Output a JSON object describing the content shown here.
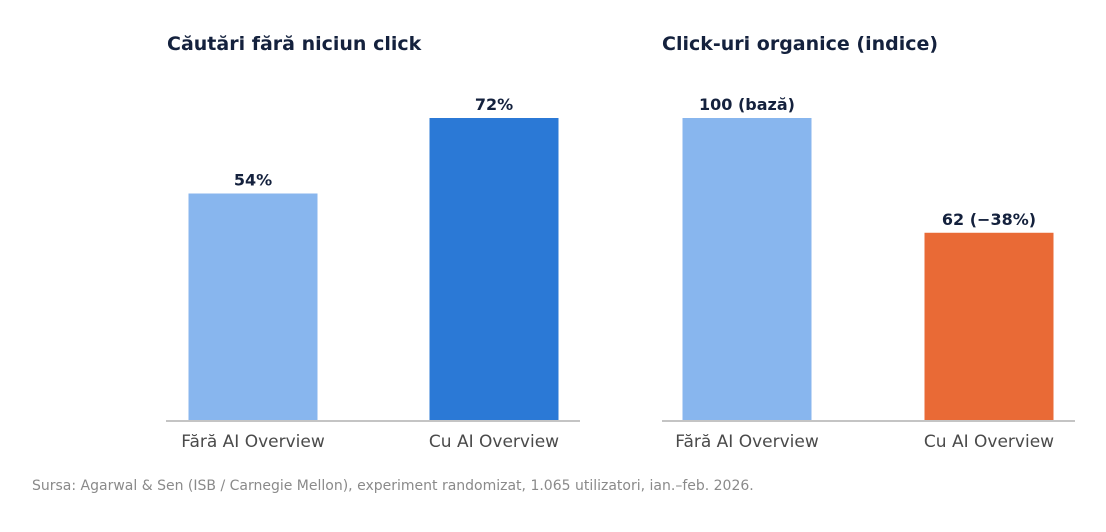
{
  "chart_data": [
    {
      "type": "bar",
      "title": "Căutări fără niciun click",
      "categories": [
        "Fără AI Overview",
        "Cu AI Overview"
      ],
      "values": [
        54,
        72
      ],
      "data_labels": [
        "54%",
        "72%"
      ],
      "colors": [
        "#88b6ee",
        "#2b79d6"
      ],
      "xlabel": "",
      "ylabel": "",
      "ylim": [
        0,
        72
      ],
      "grid": false
    },
    {
      "type": "bar",
      "title": "Click-uri organice (indice)",
      "categories": [
        "Fără AI Overview",
        "Cu AI Overview"
      ],
      "values": [
        100,
        62
      ],
      "data_labels": [
        "100 (bază)",
        "62 (−38%)"
      ],
      "colors": [
        "#88b6ee",
        "#e96a36"
      ],
      "xlabel": "",
      "ylabel": "",
      "ylim": [
        0,
        100
      ],
      "grid": false
    }
  ],
  "source": "Sursa: Agarwal & Sen (ISB / Carnegie Mellon), experiment randomizat, 1.065 utilizatori, ian.–feb. 2026.",
  "colors": {
    "title": "#14213d",
    "tick_label": "#4a4a4a",
    "axis": "#c4c4c4",
    "source": "#8a8a8a"
  }
}
